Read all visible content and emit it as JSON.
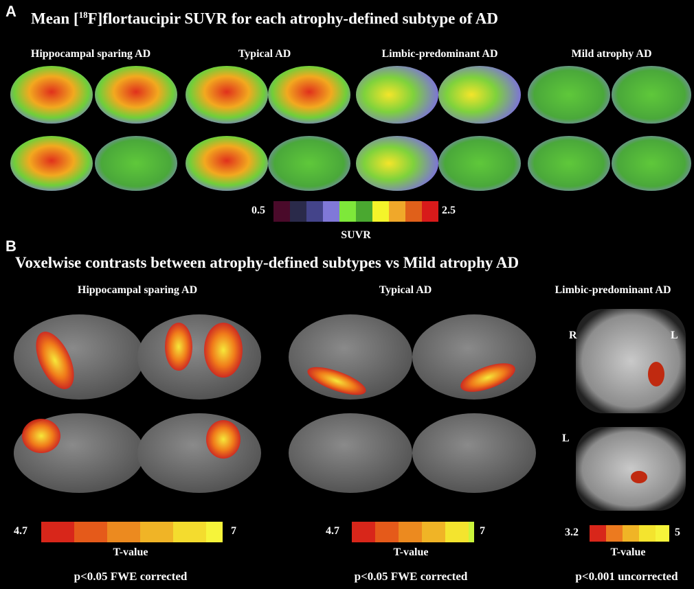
{
  "panel_a": {
    "label": "A",
    "title_prefix": "Mean [",
    "title_sup": "18",
    "title_suffix": "F]flortaucipir SUVR for each atrophy-defined subtype of AD",
    "subtypes": [
      "Hippocampal sparing AD",
      "Typical AD",
      "Limbic-predominant AD",
      "Mild atrophy AD"
    ],
    "colorbar": {
      "min": 0.5,
      "max": 2.5,
      "label": "SUVR"
    }
  },
  "panel_b": {
    "label": "B",
    "title": "Voxelwise contrasts between atrophy-defined subtypes vs Mild atrophy AD",
    "groups": [
      {
        "name": "Hippocampal sparing AD",
        "colorbar": {
          "min": 4.7,
          "max": 7,
          "label": "T-value"
        },
        "note": "p<0.05 FWE corrected"
      },
      {
        "name": "Typical AD",
        "colorbar": {
          "min": 4.7,
          "max": 7,
          "label": "T-value"
        },
        "note": "p<0.05 FWE corrected"
      },
      {
        "name": "Limbic-predominant AD",
        "colorbar": {
          "min": 3.2,
          "max": 5,
          "label": "T-value"
        },
        "note": "p<0.001 uncorrected"
      }
    ],
    "orientation": {
      "coronal_right": "R",
      "coronal_left": "L",
      "sagittal": "L"
    }
  }
}
